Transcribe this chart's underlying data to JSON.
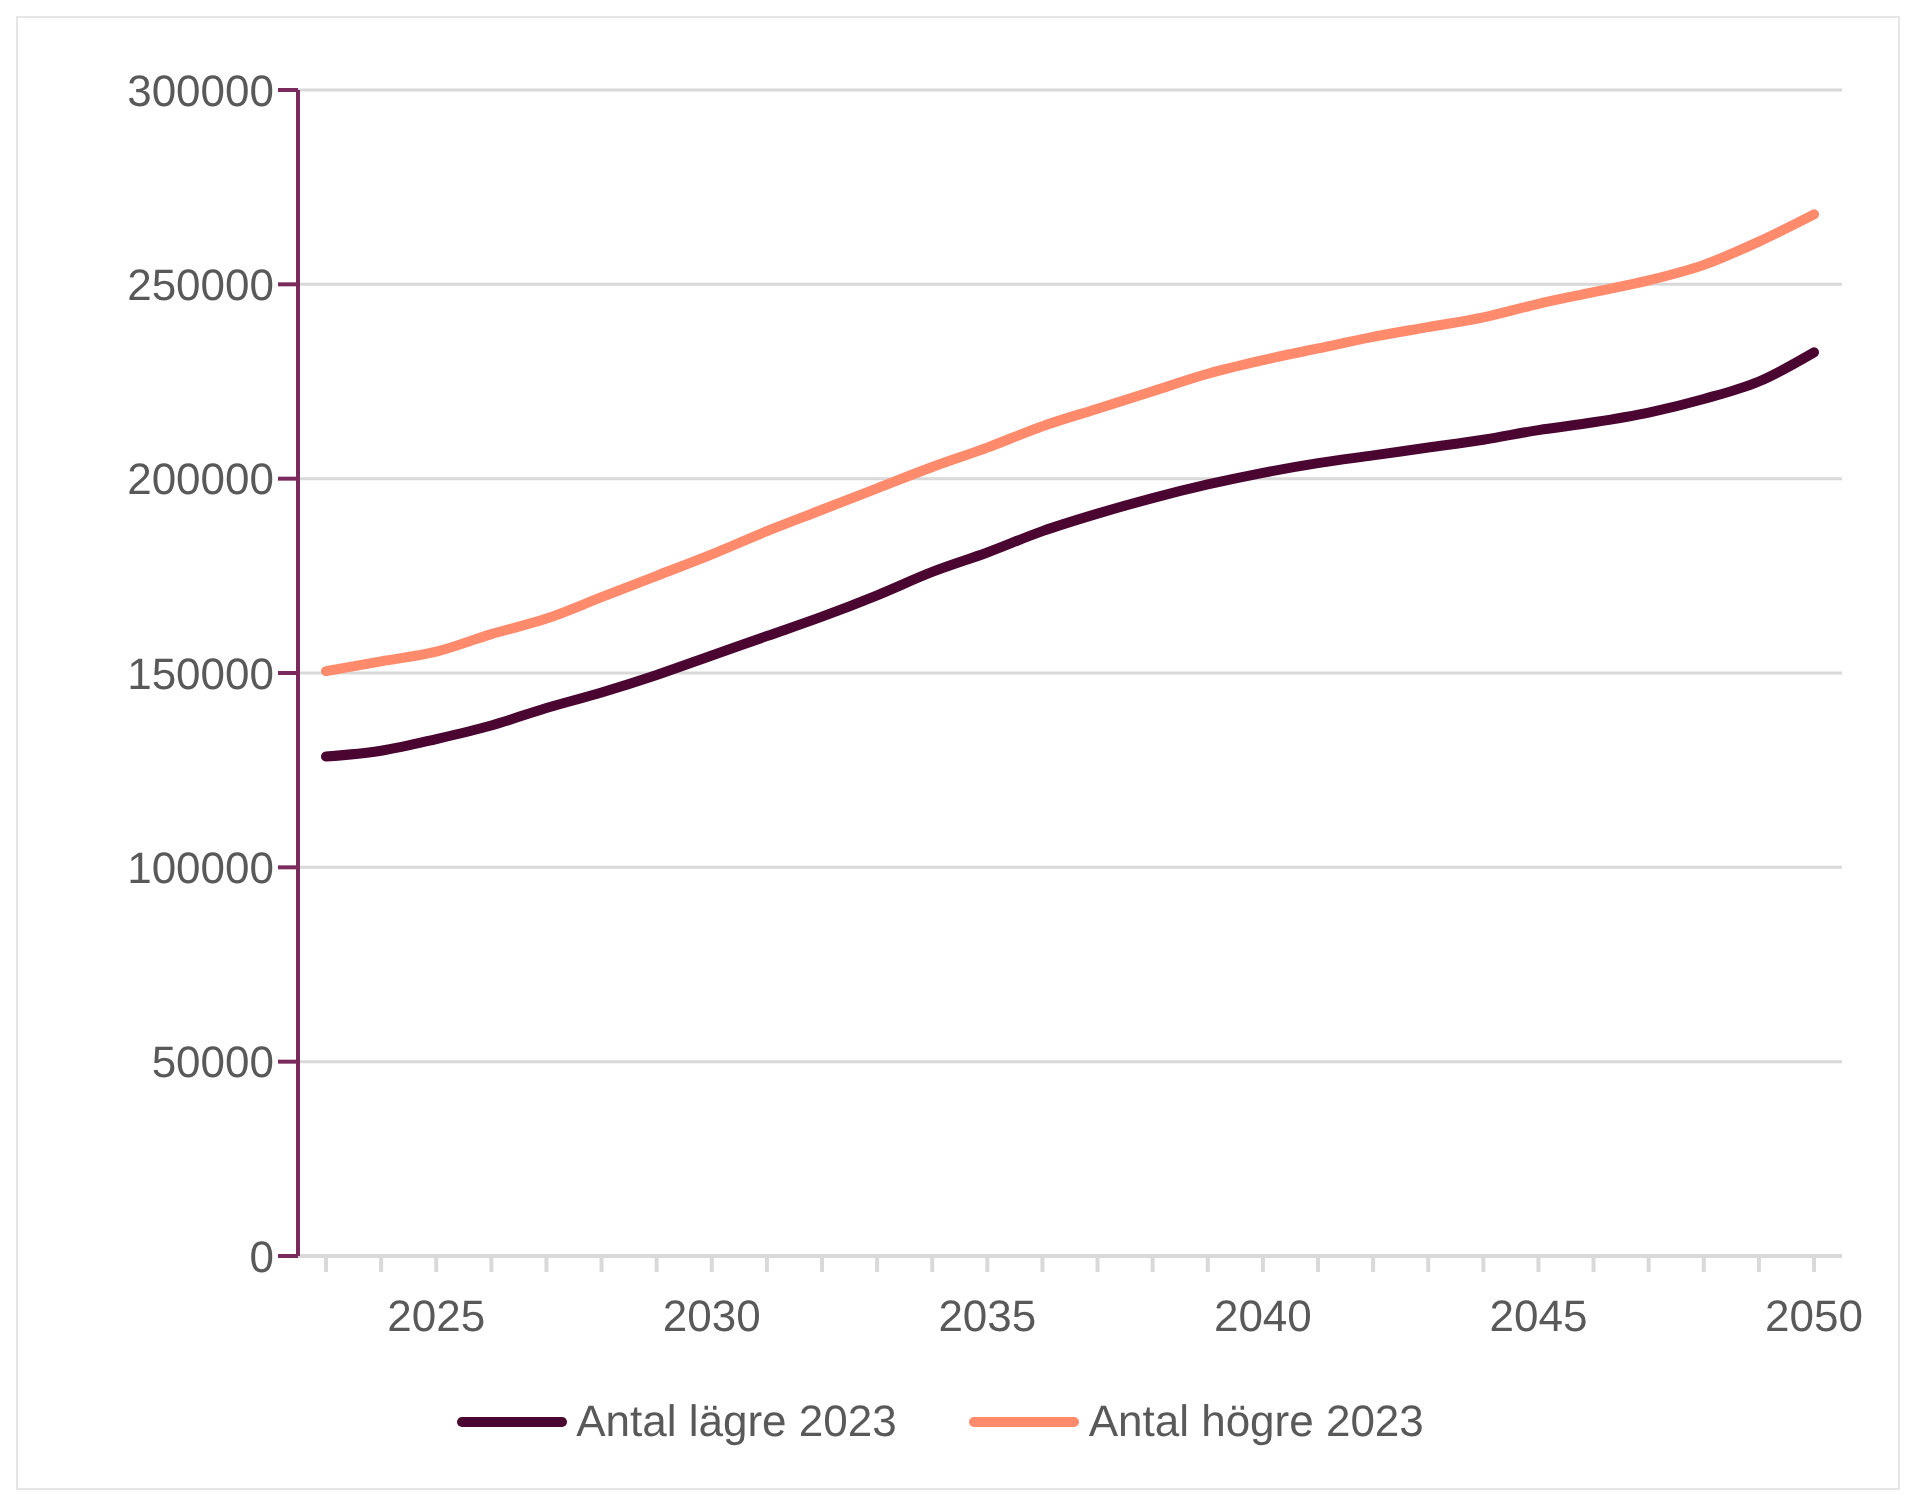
{
  "chart_data": {
    "type": "line",
    "categories": [
      null,
      null,
      "2025",
      null,
      null,
      null,
      null,
      "2030",
      null,
      null,
      null,
      null,
      "2035",
      null,
      null,
      null,
      null,
      "2040",
      null,
      null,
      null,
      null,
      "2045",
      null,
      null,
      null,
      null,
      "2050"
    ],
    "series": [
      {
        "name": "Antal lägre 2023",
        "color": "#4a0630",
        "values": [
          128500,
          130000,
          133000,
          136500,
          141000,
          145000,
          149500,
          154500,
          159500,
          164500,
          170000,
          176000,
          181000,
          186500,
          191000,
          195000,
          198500,
          201500,
          204000,
          206000,
          208000,
          210000,
          212500,
          214500,
          217000,
          220500,
          225000,
          232500
        ]
      },
      {
        "name": "Antal högre 2023",
        "color": "#ff8a6c",
        "values": [
          150500,
          153000,
          155500,
          160000,
          164000,
          169500,
          175000,
          180500,
          186500,
          192000,
          197500,
          203000,
          208000,
          213500,
          218000,
          222500,
          227000,
          230500,
          233500,
          236500,
          239000,
          241500,
          245000,
          248000,
          251000,
          255000,
          261000,
          268000
        ]
      }
    ],
    "ylim": [
      0,
      300000
    ],
    "yticks": [
      0,
      50000,
      100000,
      150000,
      200000,
      250000,
      300000
    ],
    "grid": "y",
    "legend": "bottom",
    "marker": "none",
    "line_style": "solid"
  }
}
